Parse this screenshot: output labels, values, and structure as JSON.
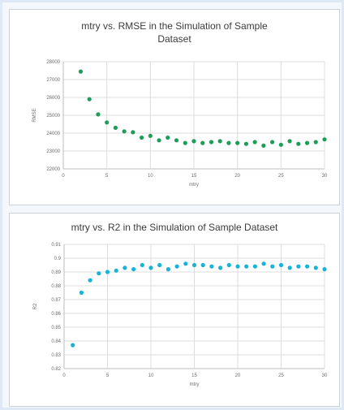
{
  "chart_data": [
    {
      "type": "scatter",
      "title": "mtry vs. RMSE in the Simulation of  Sample\nDataset",
      "xlabel": "mtry",
      "ylabel": "RMSE",
      "xlim": [
        0,
        30
      ],
      "ylim": [
        22000,
        28000
      ],
      "xticks": [
        "0",
        "5",
        "10",
        "15",
        "20",
        "25",
        "30"
      ],
      "yticks": [
        "22000",
        "23000",
        "24000",
        "25000",
        "26000",
        "27000",
        "28000"
      ],
      "grid": true,
      "color": "#1e9c5a",
      "series": [
        {
          "x": [
            2,
            3,
            4,
            5,
            6,
            7,
            8,
            9,
            10,
            11,
            12,
            13,
            14,
            15,
            16,
            17,
            18,
            19,
            20,
            21,
            22,
            23,
            24,
            25,
            26,
            27,
            28,
            29,
            30
          ],
          "y": [
            27450,
            25900,
            25050,
            24600,
            24300,
            24100,
            24050,
            23750,
            23850,
            23600,
            23750,
            23600,
            23450,
            23550,
            23450,
            23500,
            23550,
            23450,
            23450,
            23400,
            23500,
            23300,
            23500,
            23350,
            23550,
            23400,
            23450,
            23500,
            23650
          ]
        }
      ]
    },
    {
      "type": "scatter",
      "title": "mtry vs. R2  in the Simulation of  Sample Dataset",
      "xlabel": "mtry",
      "ylabel": "R2",
      "xlim": [
        0,
        30
      ],
      "ylim": [
        0.82,
        0.91
      ],
      "xticks": [
        "0",
        "5",
        "10",
        "15",
        "20",
        "25",
        "30"
      ],
      "yticks": [
        "0.82",
        "0.83",
        "0.84",
        "0.85",
        "0.86",
        "0.87",
        "0.88",
        "0.89",
        "0.9",
        "0.91"
      ],
      "grid": true,
      "color": "#17b3d8",
      "series": [
        {
          "x": [
            1,
            2,
            3,
            4,
            5,
            6,
            7,
            8,
            9,
            10,
            11,
            12,
            13,
            14,
            15,
            16,
            17,
            18,
            19,
            20,
            21,
            22,
            23,
            24,
            25,
            26,
            27,
            28,
            29,
            30
          ],
          "y": [
            0.837,
            0.875,
            0.884,
            0.889,
            0.89,
            0.891,
            0.893,
            0.892,
            0.895,
            0.893,
            0.895,
            0.892,
            0.894,
            0.896,
            0.895,
            0.895,
            0.894,
            0.893,
            0.895,
            0.894,
            0.894,
            0.894,
            0.896,
            0.894,
            0.895,
            0.893,
            0.894,
            0.894,
            0.893,
            0.892
          ]
        }
      ]
    }
  ]
}
